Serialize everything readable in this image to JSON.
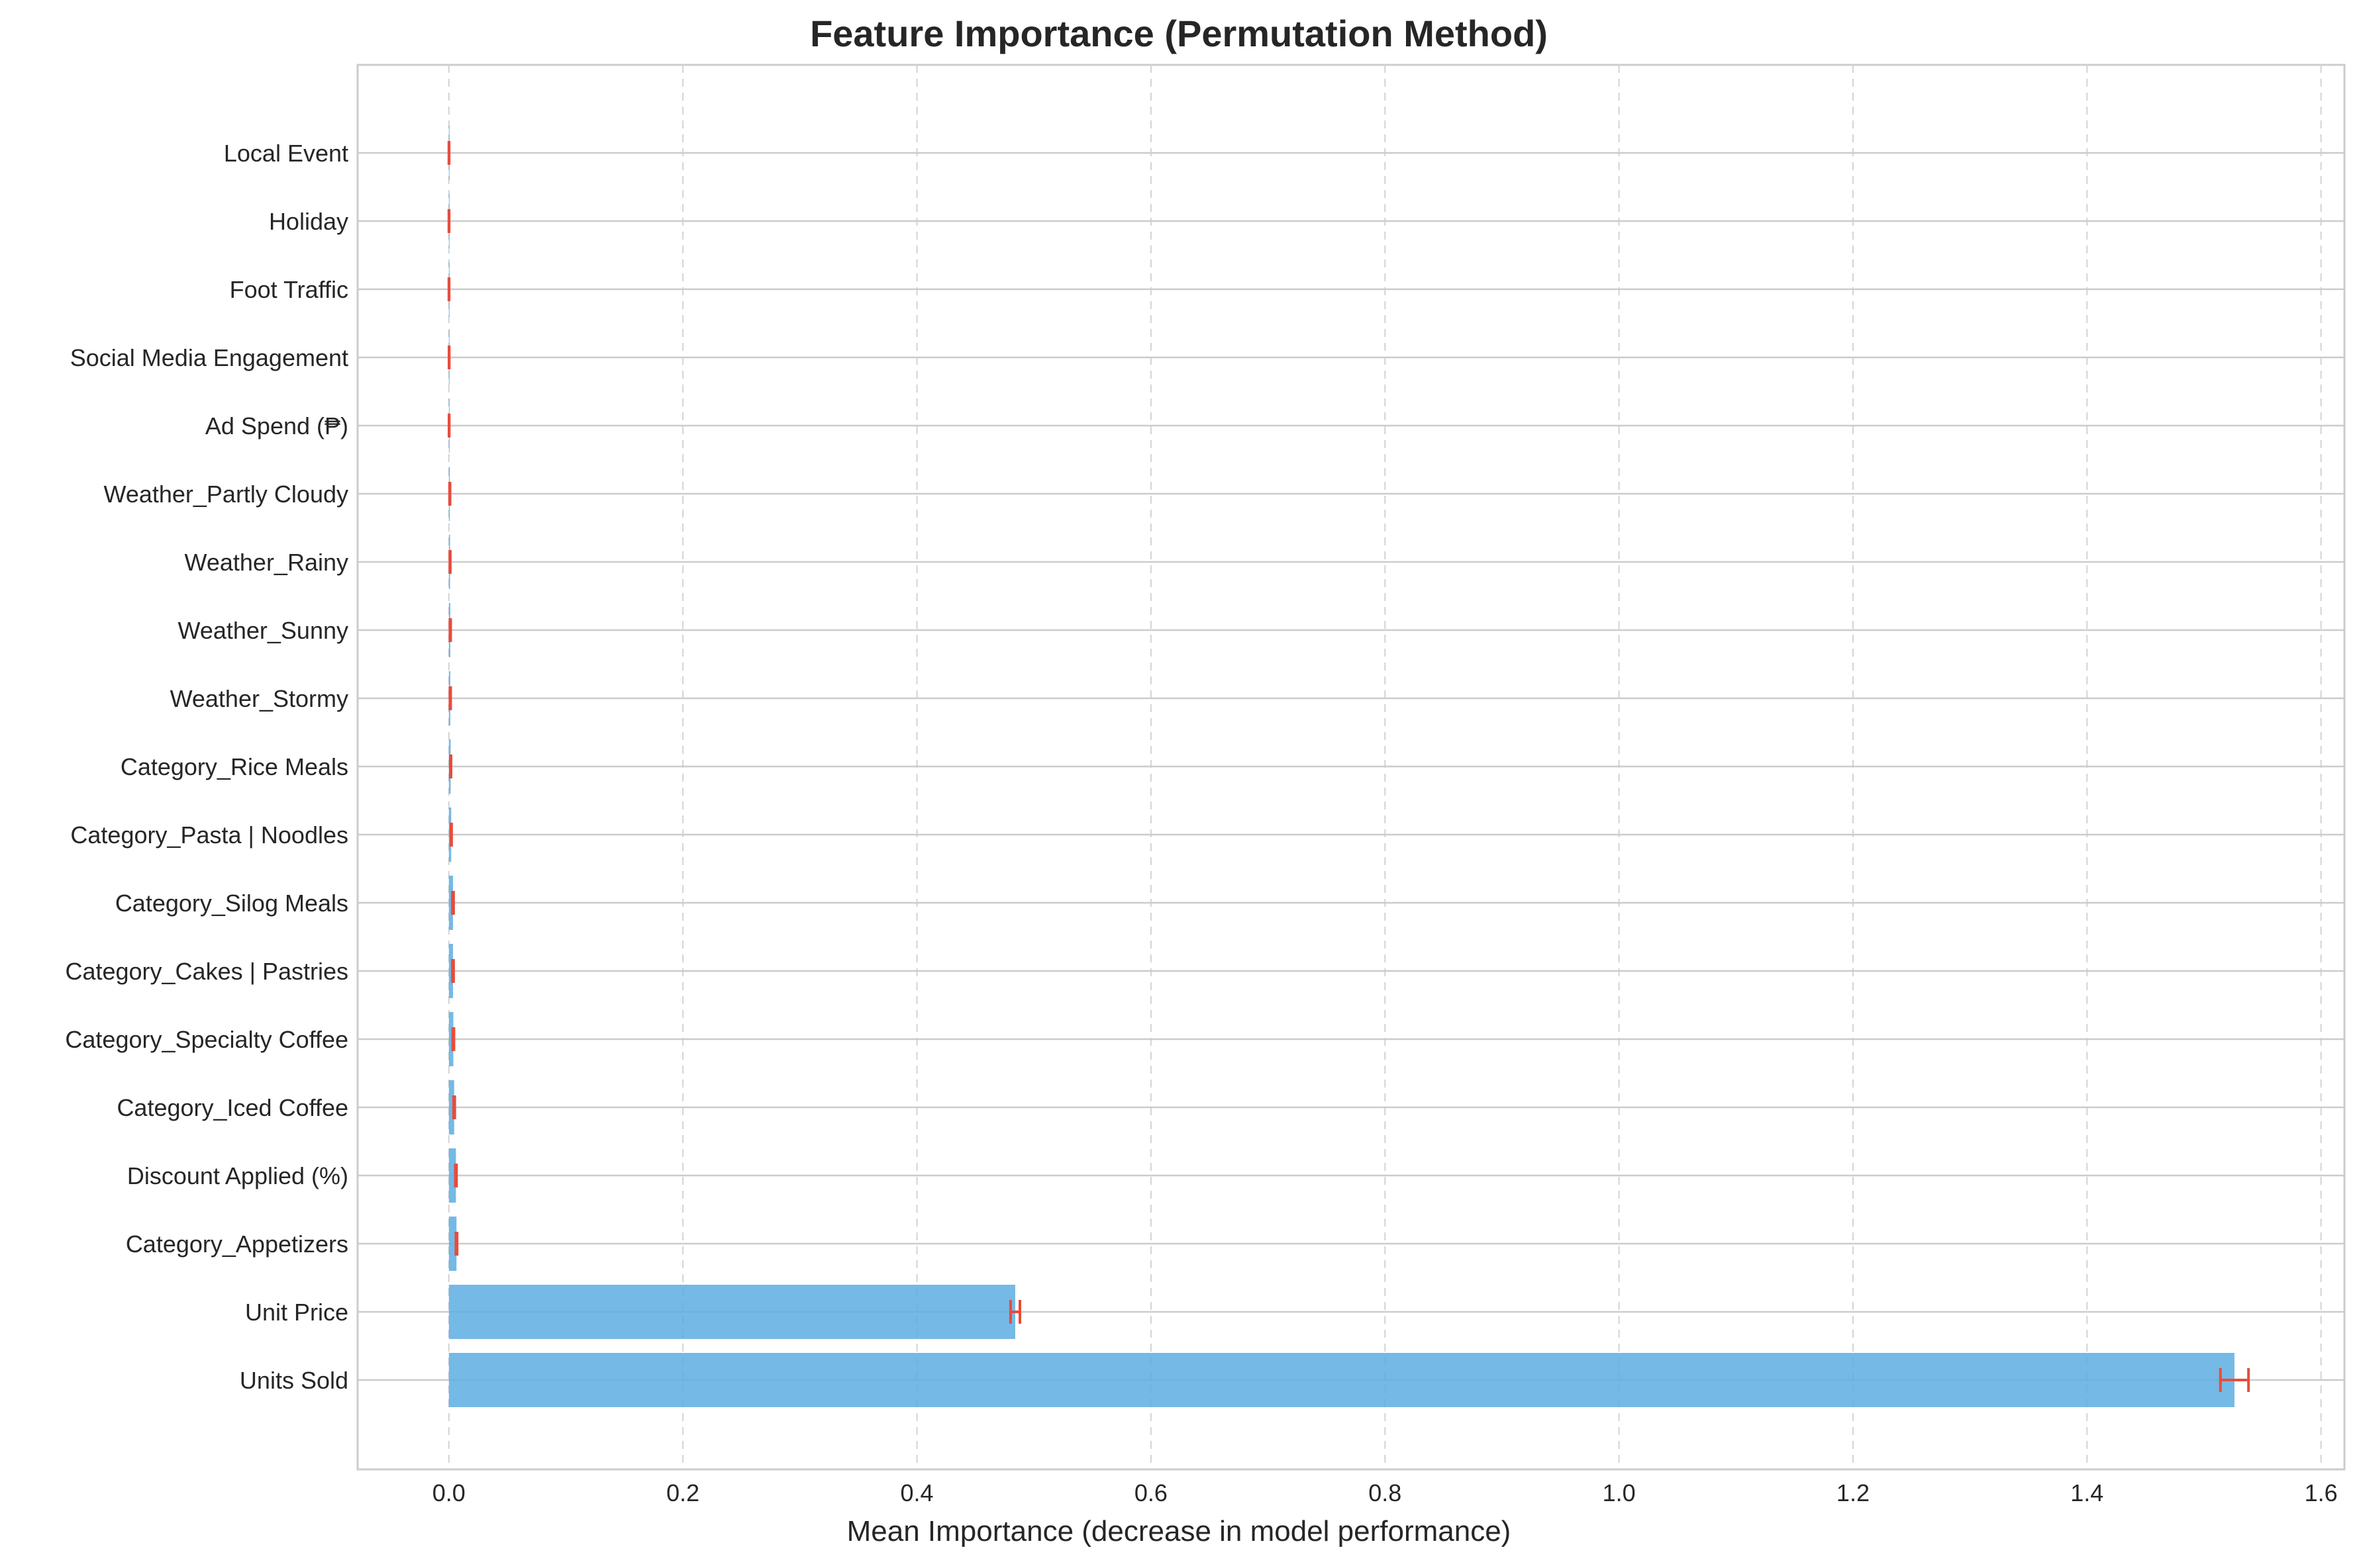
{
  "chart_data": {
    "type": "bar",
    "orientation": "horizontal",
    "title": "Feature Importance (Permutation Method)",
    "xlabel": "Mean Importance (decrease in model performance)",
    "ylabel": "",
    "xlim": [
      -0.078,
      1.62
    ],
    "xticks": [
      0.0,
      0.2,
      0.4,
      0.6,
      0.8,
      1.0,
      1.2,
      1.4,
      1.6
    ],
    "xtick_labels": [
      "0.0",
      "0.2",
      "0.4",
      "0.6",
      "0.8",
      "1.0",
      "1.2",
      "1.4",
      "1.6"
    ],
    "grid": true,
    "bar_color": "#5DADE2",
    "error_color": "#E74C3C",
    "categories": [
      "Units Sold",
      "Unit Price",
      "Category_Appetizers",
      "Discount Applied (%)",
      "Category_Iced Coffee",
      "Category_Specialty Coffee",
      "Category_Cakes | Pastries",
      "Category_Silog Meals",
      "Category_Pasta | Noodles",
      "Category_Rice Meals",
      "Weather_Stormy",
      "Weather_Sunny",
      "Weather_Rainy",
      "Weather_Partly Cloudy",
      "Ad Spend (₱)",
      "Social Media Engagement",
      "Foot Traffic",
      "Holiday",
      "Local Event"
    ],
    "values": [
      1.526,
      0.484,
      0.0065,
      0.006,
      0.0045,
      0.0038,
      0.0035,
      0.0035,
      0.002,
      0.0015,
      0.0012,
      0.0012,
      0.001,
      0.0008,
      0.0002,
      0.0002,
      0.0001,
      0.0001,
      0.0001
    ],
    "errors": [
      0.012,
      0.004,
      0.0005,
      0.0005,
      0.0005,
      0.0005,
      0.0005,
      0.0005,
      0.0003,
      0.0003,
      0.0003,
      0.0003,
      0.0002,
      0.0002,
      0.0001,
      0.0001,
      0.0001,
      0.0001,
      0.0001
    ]
  }
}
